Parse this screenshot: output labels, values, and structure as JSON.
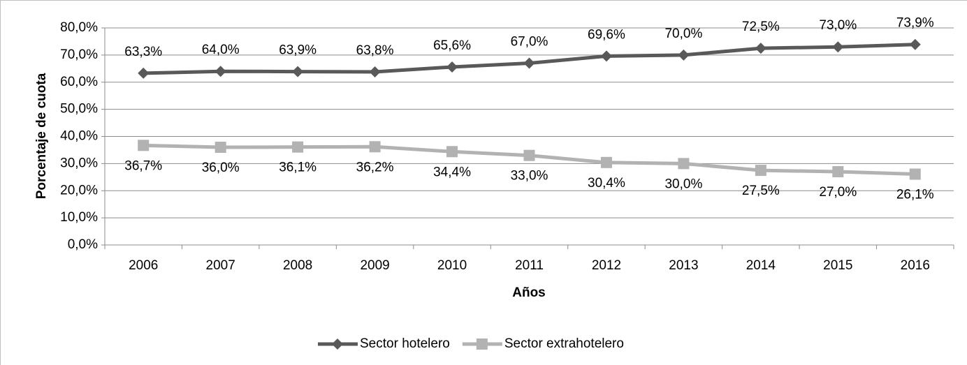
{
  "chart_data": {
    "type": "line",
    "x_label": "Años",
    "y_label": "Porcentaje de cuota",
    "categories": [
      "2006",
      "2007",
      "2008",
      "2009",
      "2010",
      "2011",
      "2012",
      "2013",
      "2014",
      "2015",
      "2016"
    ],
    "series": [
      {
        "name": "Sector hotelero",
        "color": "#595959",
        "marker": "diamond",
        "values": [
          63.3,
          64.0,
          63.9,
          63.8,
          65.6,
          67.0,
          69.6,
          70.0,
          72.5,
          73.0,
          73.9
        ],
        "value_labels": [
          "63,3%",
          "64,0%",
          "63,9%",
          "63,8%",
          "65,6%",
          "67,0%",
          "69,6%",
          "70,0%",
          "72,5%",
          "73,0%",
          "73,9%"
        ]
      },
      {
        "name": "Sector extrahotelero",
        "color": "#b2b2b2",
        "marker": "square",
        "values": [
          36.7,
          36.0,
          36.1,
          36.2,
          34.4,
          33.0,
          30.4,
          30.0,
          27.5,
          27.0,
          26.1
        ],
        "value_labels": [
          "36,7%",
          "36,0%",
          "36,1%",
          "36,2%",
          "34,4%",
          "33,0%",
          "30,4%",
          "30,0%",
          "27,5%",
          "27,0%",
          "26,1%"
        ]
      }
    ],
    "ylim": [
      0,
      80
    ],
    "yticks": [
      {
        "value": 0,
        "label": "0,0%"
      },
      {
        "value": 10,
        "label": "10,0%"
      },
      {
        "value": 20,
        "label": "20,0%"
      },
      {
        "value": 30,
        "label": "30,0%"
      },
      {
        "value": 40,
        "label": "40,0%"
      },
      {
        "value": 50,
        "label": "50,0%"
      },
      {
        "value": 60,
        "label": "60,0%"
      },
      {
        "value": 70,
        "label": "70,0%"
      },
      {
        "value": 80,
        "label": "80,0%"
      }
    ],
    "grid": true,
    "legend": "bottom"
  }
}
